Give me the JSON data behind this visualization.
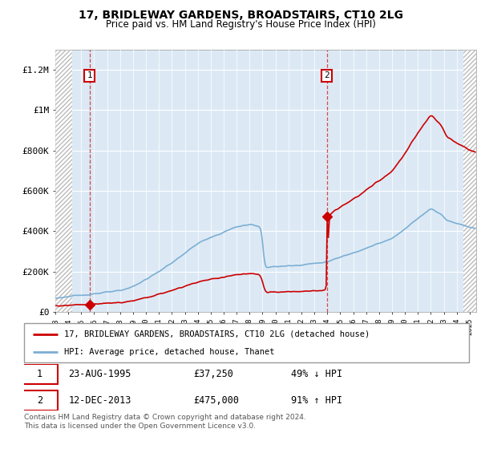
{
  "title": "17, BRIDLEWAY GARDENS, BROADSTAIRS, CT10 2LG",
  "subtitle": "Price paid vs. HM Land Registry's House Price Index (HPI)",
  "sale1_label": "23-AUG-1995",
  "sale1_price": 37250,
  "sale1_pct": "49% ↓ HPI",
  "sale2_label": "12-DEC-2013",
  "sale2_price": 475000,
  "sale2_pct": "91% ↑ HPI",
  "legend_property": "17, BRIDLEWAY GARDENS, BROADSTAIRS, CT10 2LG (detached house)",
  "legend_hpi": "HPI: Average price, detached house, Thanet",
  "footnote": "Contains HM Land Registry data © Crown copyright and database right 2024.\nThis data is licensed under the Open Government Licence v3.0.",
  "ylim": [
    0,
    1300000
  ],
  "yticks": [
    0,
    200000,
    400000,
    600000,
    800000,
    1000000,
    1200000
  ],
  "ytick_labels": [
    "£0",
    "£200K",
    "£400K",
    "£600K",
    "£800K",
    "£1M",
    "£1.2M"
  ],
  "plot_bg": "#dce9f5",
  "grid_color": "#ffffff",
  "red_line_color": "#cc0000",
  "blue_line_color": "#7bafd4",
  "marker_color": "#cc0000",
  "dashed_color": "#cc0000",
  "sale1_x": 1995.64,
  "sale2_x": 2013.96,
  "xmin": 1993.0,
  "xmax": 2025.5,
  "hatch_left_end": 1994.3,
  "hatch_right_start": 2024.5
}
